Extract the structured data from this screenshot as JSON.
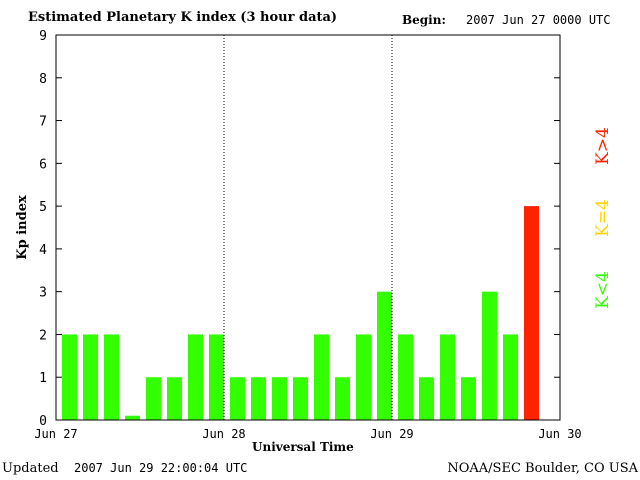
{
  "header": {
    "title": "Estimated Planetary K index (3 hour data)",
    "begin_label": "Begin:",
    "begin_value": "2007 Jun 27 0000 UTC"
  },
  "footer": {
    "updated_label": "Updated",
    "updated_value": "2007 Jun 29 22:00:04 UTC",
    "credit": "NOAA/SEC Boulder, CO USA"
  },
  "legend": [
    {
      "label": "K<4",
      "color": "#33ff00"
    },
    {
      "label": "K=4",
      "color": "#ffd200"
    },
    {
      "label": "K>4",
      "color": "#ff2200"
    }
  ],
  "colors": {
    "below": "#33ff00",
    "equal": "#ffd200",
    "above": "#ff2200"
  },
  "chart_data": {
    "type": "bar",
    "title": "Estimated Planetary K index (3 hour data)",
    "xlabel": "Universal Time",
    "ylabel": "Kp index",
    "ylim": [
      0,
      9
    ],
    "yticks": [
      "0",
      "1",
      "2",
      "3",
      "4",
      "5",
      "6",
      "7",
      "8",
      "9"
    ],
    "xticks": [
      "Jun 27",
      "Jun 28",
      "Jun 29",
      "Jun 30"
    ],
    "day_separators": true,
    "bar_interval_hours": 3,
    "values": [
      2,
      2,
      2,
      0.1,
      1,
      1,
      2,
      2,
      1,
      1,
      1,
      1,
      2,
      1,
      2,
      3,
      2,
      1,
      2,
      1,
      3,
      2,
      5
    ]
  }
}
